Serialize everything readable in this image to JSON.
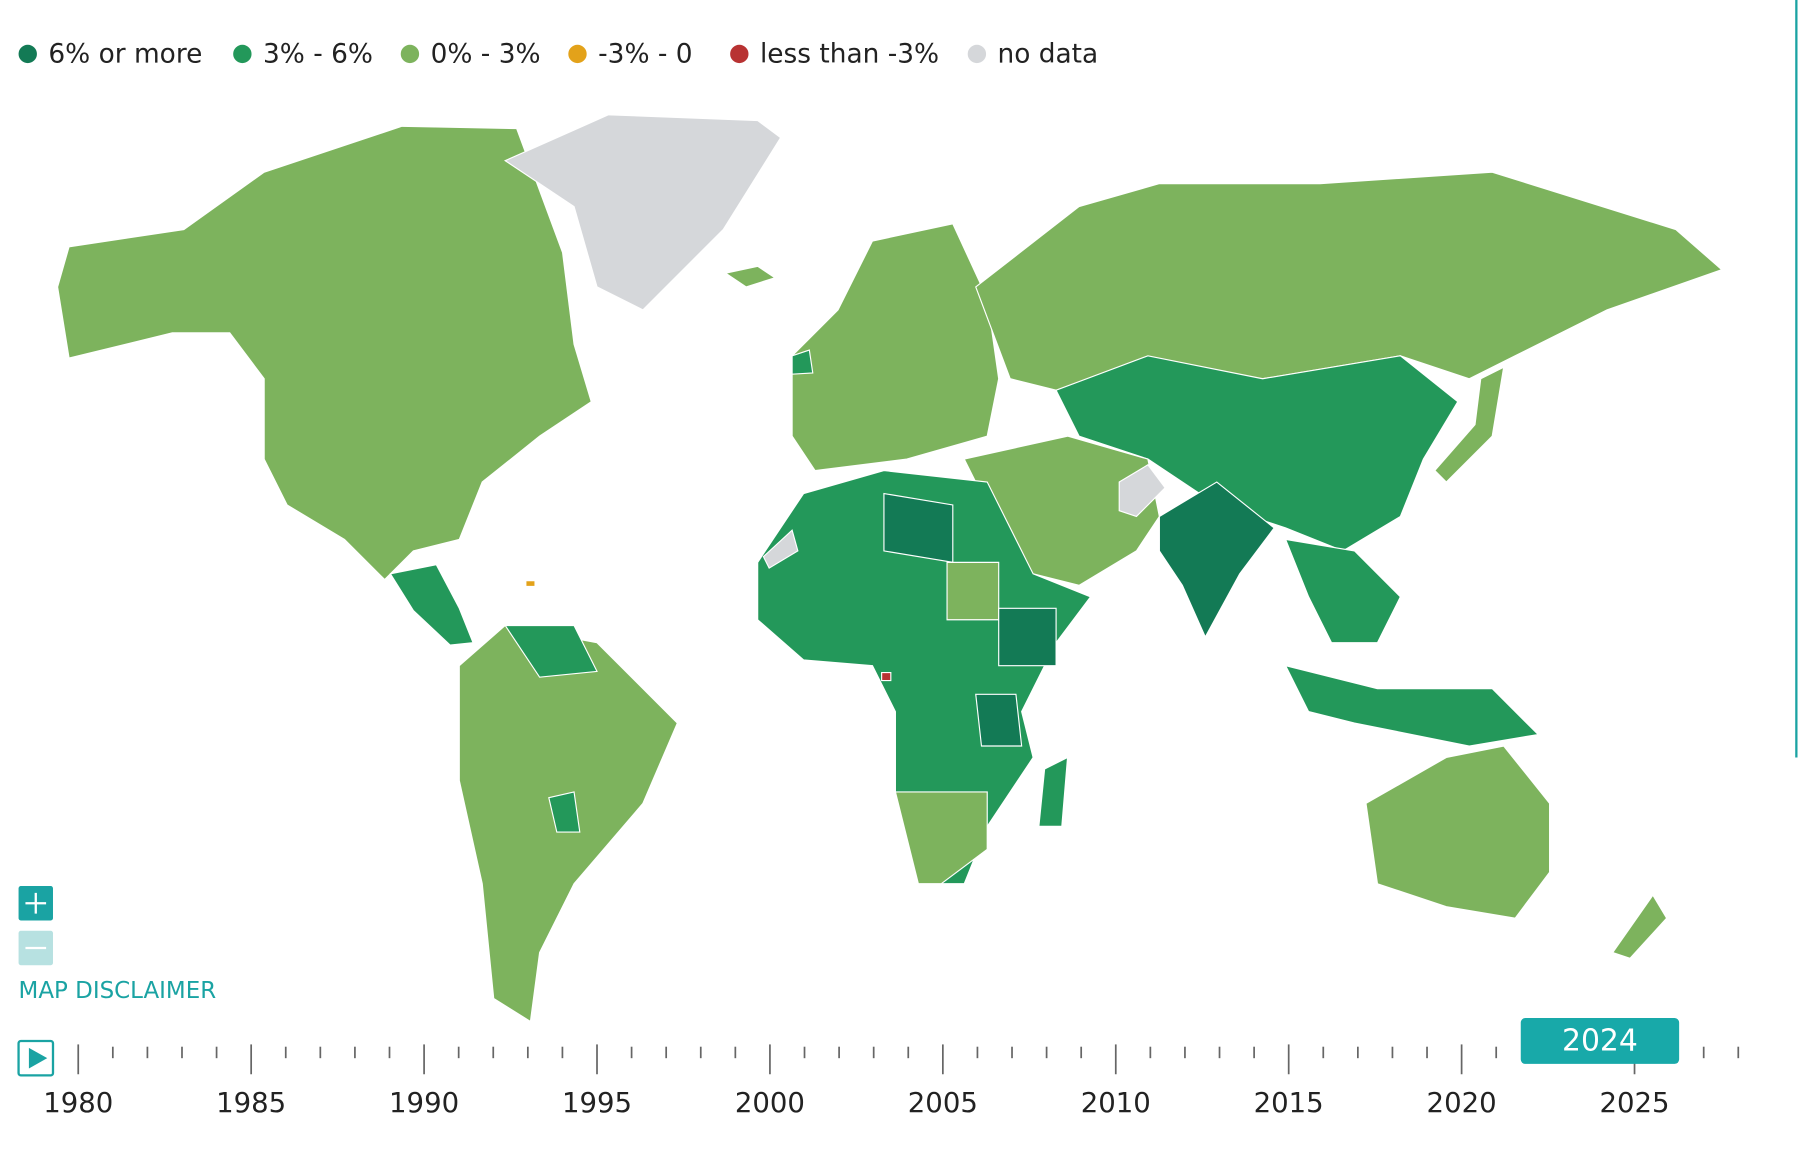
{
  "legend": [
    {
      "label": "6% or more",
      "color": "#137a55"
    },
    {
      "label": "3% - 6%",
      "color": "#23985a"
    },
    {
      "label": "0% - 3%",
      "color": "#7db35d"
    },
    {
      "label": "-3% - 0",
      "color": "#e3a21a"
    },
    {
      "label": "less than -3%",
      "color": "#b83232"
    },
    {
      "label": "no data",
      "color": "#d5d7da"
    }
  ],
  "disclaimer": "MAP DISCLAIMER",
  "timeline": {
    "labels": [
      1980,
      1985,
      1990,
      1995,
      2000,
      2005,
      2010,
      2015,
      2020,
      2025
    ],
    "selected": 2024
  }
}
